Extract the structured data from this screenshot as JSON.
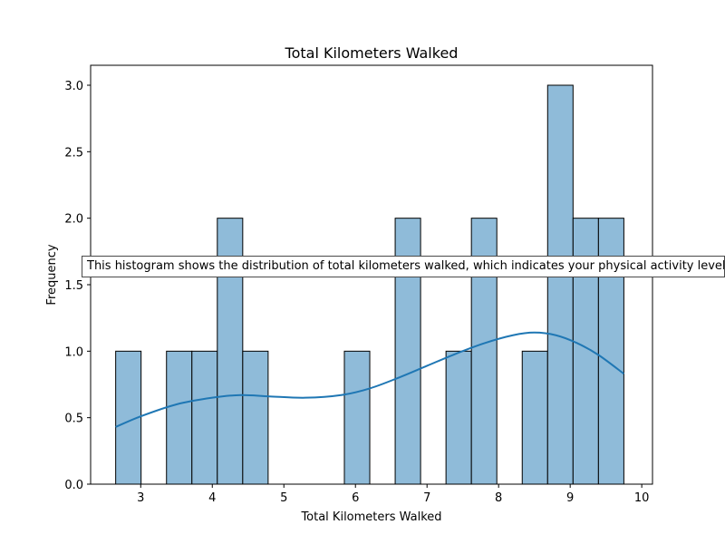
{
  "chart_data": {
    "type": "bar",
    "title": "Total Kilometers Walked",
    "xlabel": "Total Kilometers Walked",
    "ylabel": "Frequency",
    "xlim": [
      2.3,
      10.15
    ],
    "ylim": [
      0,
      3.15
    ],
    "xticks": [
      3,
      4,
      5,
      6,
      7,
      8,
      9,
      10
    ],
    "xtick_labels": [
      "3",
      "4",
      "5",
      "6",
      "7",
      "8",
      "9",
      "10"
    ],
    "yticks": [
      0,
      0.5,
      1.0,
      1.5,
      2.0,
      2.5,
      3.0
    ],
    "ytick_labels": [
      "0.0",
      "0.5",
      "1.0",
      "1.5",
      "2.0",
      "2.5",
      "3.0"
    ],
    "bin_edges": [
      2.65,
      3.005,
      3.36,
      3.715,
      4.07,
      4.425,
      4.78,
      5.135,
      5.49,
      5.845,
      6.2,
      6.555,
      6.91,
      7.265,
      7.62,
      7.975,
      8.33,
      8.685,
      9.04,
      9.395,
      9.75
    ],
    "values": [
      1,
      0,
      1,
      1,
      2,
      1,
      0,
      0,
      0,
      1,
      0,
      2,
      0,
      1,
      2,
      0,
      1,
      3,
      2,
      2
    ],
    "kde": {
      "x": [
        2.65,
        3.0,
        3.5,
        4.0,
        4.4,
        4.8,
        5.3,
        5.8,
        6.2,
        6.6,
        7.0,
        7.4,
        7.8,
        8.2,
        8.5,
        8.8,
        9.1,
        9.4,
        9.75
      ],
      "y": [
        0.43,
        0.51,
        0.6,
        0.65,
        0.67,
        0.66,
        0.65,
        0.67,
        0.72,
        0.8,
        0.89,
        0.98,
        1.06,
        1.12,
        1.14,
        1.12,
        1.06,
        0.97,
        0.83
      ]
    },
    "grid": false,
    "bar_color": "#8fbbd9",
    "bar_edge_color": "#000000",
    "line_color": "#1f77b4"
  },
  "annotation": {
    "text": "This histogram shows the distribution of total kilometers walked, which indicates your physical activity level."
  }
}
